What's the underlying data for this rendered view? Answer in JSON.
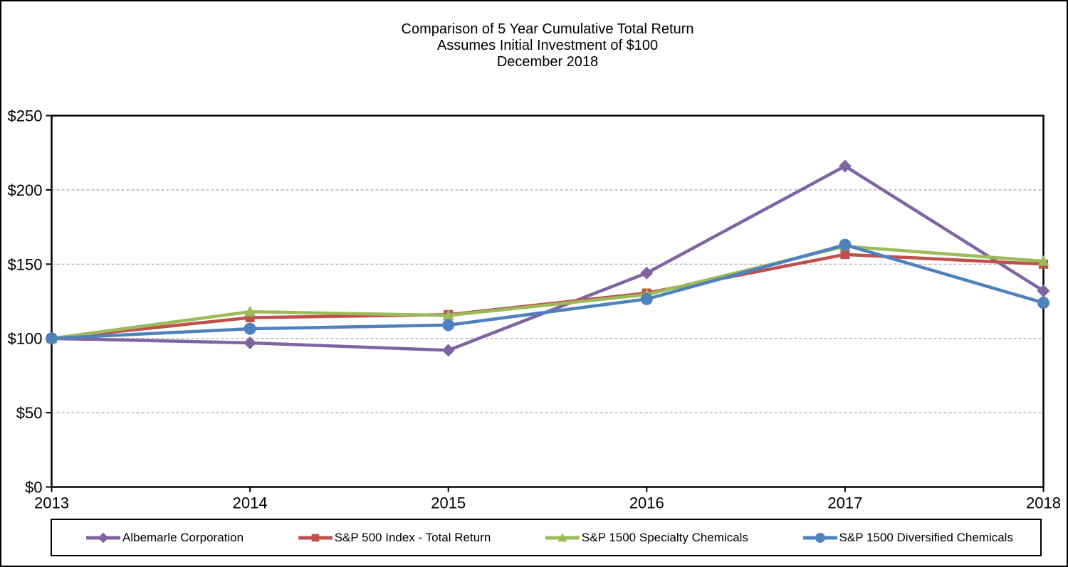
{
  "page": {
    "background_color": "#FFFFFF",
    "border_color": "#000000"
  },
  "chart_data": {
    "type": "line",
    "title": "Comparison of 5 Year Cumulative Total Return",
    "subtitle": "Assumes Initial Investment of $100",
    "date_line": "December 2018",
    "xlabel": "",
    "ylabel": "",
    "x_tick_labels": [
      "2013",
      "2014",
      "2015",
      "2016",
      "2017",
      "2018"
    ],
    "y_ticks": [
      0,
      50,
      100,
      150,
      200,
      250
    ],
    "y_tick_labels": [
      "$0",
      "$50",
      "$100",
      "$150",
      "$200",
      "$250"
    ],
    "ylim": [
      0,
      250
    ],
    "grid": "horizontal dashed gridlines at $50 intervals",
    "legend_position": "bottom",
    "gridline_color": "#A6A6A6",
    "axis_color": "#000000",
    "series": [
      {
        "name": "Albemarle Corporation",
        "color": "#8064A2",
        "marker": "diamond",
        "values": [
          100,
          97,
          92,
          144,
          216,
          132
        ]
      },
      {
        "name": "S&P 500 Index - Total Return",
        "color": "#C0504D",
        "marker": "square",
        "values": [
          100,
          114,
          116,
          130.5,
          156.5,
          150
        ]
      },
      {
        "name": "S&P 1500 Specialty Chemicals",
        "color": "#9BBB59",
        "marker": "triangle",
        "values": [
          100,
          118,
          115.5,
          129.5,
          162,
          152
        ]
      },
      {
        "name": "S&P 1500 Diversified Chemicals",
        "color": "#4F81BD",
        "marker": "circle",
        "values": [
          100,
          106.5,
          109,
          126.5,
          163,
          124
        ]
      }
    ]
  }
}
